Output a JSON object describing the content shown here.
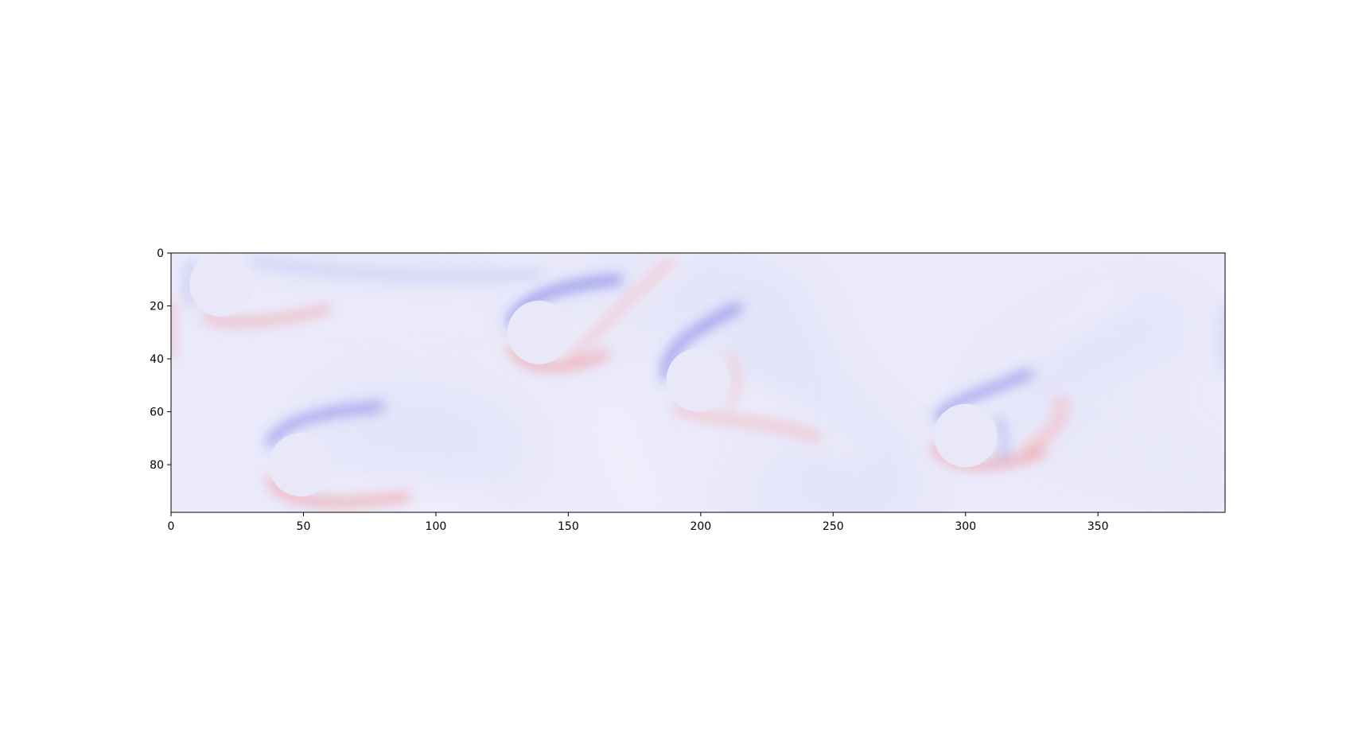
{
  "chart_data": {
    "type": "heatmap",
    "description_colormap": "bwr",
    "colors": {
      "background": "#ebebfb",
      "negative": "#1010e0",
      "positive": "#e01010",
      "obstacle": "#e8e8f8",
      "frame": "#000000"
    },
    "xlim": [
      0,
      398
    ],
    "ylim": [
      98,
      0
    ],
    "x_ticks": [
      0,
      50,
      100,
      150,
      200,
      250,
      300,
      350
    ],
    "y_ticks": [
      0,
      20,
      40,
      60,
      80
    ],
    "x_tick_labels": [
      "0",
      "50",
      "100",
      "150",
      "200",
      "250",
      "300",
      "350"
    ],
    "y_tick_labels": [
      "0",
      "20",
      "40",
      "60",
      "80"
    ],
    "cylinders": [
      {
        "cx": 19,
        "cy": 12,
        "r": 12
      },
      {
        "cx": 49,
        "cy": 80,
        "r": 12
      },
      {
        "cx": 139,
        "cy": 30,
        "r": 12
      },
      {
        "cx": 199,
        "cy": 48,
        "r": 12
      },
      {
        "cx": 300,
        "cy": 69,
        "r": 12
      }
    ],
    "grid": false,
    "title": "",
    "xlabel": "",
    "ylabel": ""
  }
}
